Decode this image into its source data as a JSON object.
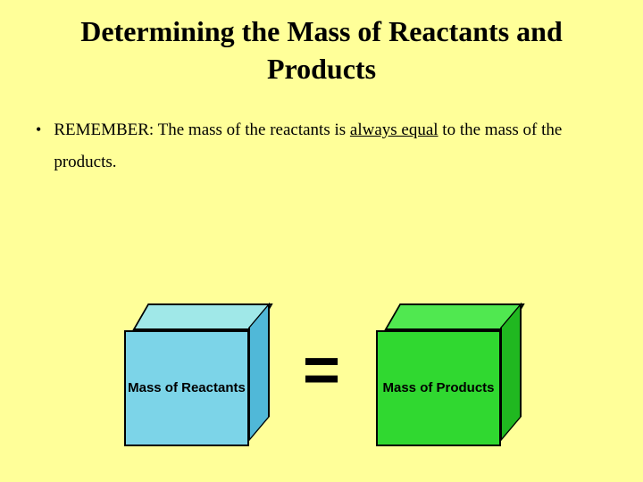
{
  "title": "Determining the Mass of Reactants and Products",
  "bullet": {
    "marker": "•",
    "prefix": "REMEMBER: The mass of the reactants is ",
    "underlined": "always equal",
    "suffix": " to the mass of the products."
  },
  "diagram": {
    "reactants_label": "Mass of Reactants",
    "products_label": "Mass of Products",
    "equals": "=",
    "reactants_colors": {
      "top": "#a0e8e8",
      "side": "#50b8d8",
      "front": "#7cd4e8"
    },
    "products_colors": {
      "top": "#50e850",
      "side": "#20b820",
      "front": "#30d830"
    }
  },
  "background_color": "#ffff99",
  "title_fontsize": 32,
  "body_fontsize": 19
}
